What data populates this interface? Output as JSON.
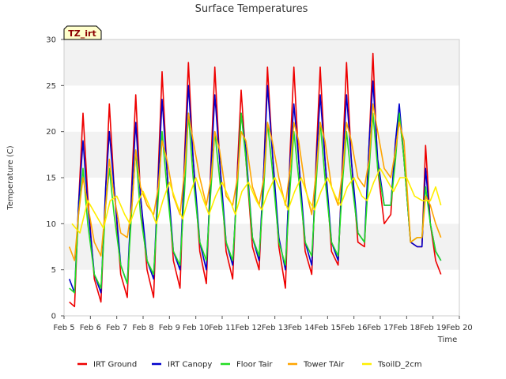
{
  "chart_data": {
    "type": "line",
    "title": "Surface Temperatures",
    "xlabel": "Time",
    "ylabel": "Temperature (C)",
    "badge": "TZ_irt",
    "xlim": [
      5,
      20
    ],
    "ylim": [
      0,
      30
    ],
    "x_ticks": [
      5,
      6,
      7,
      8,
      9,
      10,
      11,
      12,
      13,
      14,
      15,
      16,
      17,
      18,
      19,
      20
    ],
    "x_tick_labels": [
      "Feb 5",
      "Feb 6",
      "Feb 7",
      "Feb 8",
      "Feb 9",
      "Feb 10",
      "Feb 11",
      "Feb 12",
      "Feb 13",
      "Feb 14",
      "Feb 15",
      "Feb 16",
      "Feb 17",
      "Feb 18",
      "Feb 19",
      "Feb 20"
    ],
    "y_ticks": [
      0,
      5,
      10,
      15,
      20,
      25,
      30
    ],
    "y_tick_labels": [
      "0",
      "5",
      "10",
      "15",
      "20",
      "25",
      "30"
    ],
    "grid": "horizontal bands",
    "legend_position": "bottom",
    "series": [
      {
        "name": "IRT Ground",
        "color": "#ee0000",
        "x": [
          5.2,
          5.4,
          5.55,
          5.72,
          5.9,
          6.15,
          6.4,
          6.58,
          6.72,
          6.9,
          7.15,
          7.4,
          7.58,
          7.72,
          7.9,
          8.15,
          8.4,
          8.58,
          8.72,
          8.9,
          9.15,
          9.4,
          9.58,
          9.72,
          9.9,
          10.15,
          10.4,
          10.58,
          10.72,
          10.9,
          11.15,
          11.4,
          11.58,
          11.72,
          11.9,
          12.15,
          12.4,
          12.58,
          12.72,
          12.9,
          13.15,
          13.4,
          13.58,
          13.72,
          13.9,
          14.15,
          14.4,
          14.58,
          14.72,
          14.9,
          15.15,
          15.4,
          15.58,
          15.72,
          15.9,
          16.15,
          16.4,
          16.58,
          16.72,
          16.9,
          17.15,
          17.4,
          17.58,
          17.72,
          17.9,
          18.15,
          18.4,
          18.58,
          18.72,
          18.9,
          19.1,
          19.3
        ],
        "y": [
          1.5,
          1.0,
          12.0,
          22.0,
          13.0,
          4.0,
          1.5,
          14.0,
          23.0,
          14.0,
          4.5,
          2.0,
          15.0,
          24.0,
          13.0,
          5.0,
          2.0,
          16.0,
          26.5,
          16.0,
          6.0,
          3.0,
          18.0,
          27.5,
          17.0,
          7.0,
          3.5,
          17.0,
          27.0,
          17.0,
          7.0,
          4.0,
          16.0,
          24.5,
          17.0,
          7.5,
          5.0,
          16.0,
          27.0,
          18.0,
          7.5,
          3.0,
          18.0,
          27.0,
          17.0,
          7.0,
          4.5,
          18.0,
          27.0,
          17.0,
          7.0,
          5.5,
          18.0,
          27.5,
          17.0,
          8.0,
          7.5,
          19.0,
          28.5,
          16.0,
          10.0,
          11.0,
          19.0,
          22.0,
          17.0,
          8.0,
          7.5,
          7.5,
          18.5,
          10.0,
          6.0,
          4.5
        ]
      },
      {
        "name": "IRT Canopy",
        "color": "#0000cc",
        "x": [
          5.2,
          5.4,
          5.55,
          5.72,
          5.9,
          6.15,
          6.4,
          6.58,
          6.72,
          6.9,
          7.15,
          7.4,
          7.58,
          7.72,
          7.9,
          8.15,
          8.4,
          8.58,
          8.72,
          8.9,
          9.15,
          9.4,
          9.58,
          9.72,
          9.9,
          10.15,
          10.4,
          10.58,
          10.72,
          10.9,
          11.15,
          11.4,
          11.58,
          11.72,
          11.9,
          12.15,
          12.4,
          12.58,
          12.72,
          12.9,
          13.15,
          13.4,
          13.58,
          13.72,
          13.9,
          14.15,
          14.4,
          14.58,
          14.72,
          14.9,
          15.15,
          15.4,
          15.58,
          15.72,
          15.9,
          16.15,
          16.4,
          16.58,
          16.72,
          16.9,
          17.15,
          17.4,
          17.58,
          17.72,
          17.9,
          18.15,
          18.4,
          18.58,
          18.72,
          18.9,
          19.1,
          19.3
        ],
        "y": [
          4.0,
          2.5,
          12.0,
          19.0,
          12.0,
          4.5,
          2.5,
          14.0,
          20.0,
          14.0,
          5.5,
          3.5,
          14.0,
          21.0,
          13.0,
          6.0,
          4.0,
          15.0,
          23.5,
          16.0,
          7.0,
          5.0,
          17.0,
          25.0,
          17.0,
          8.0,
          5.0,
          16.0,
          24.0,
          17.0,
          8.0,
          5.5,
          15.0,
          22.0,
          18.0,
          8.5,
          6.0,
          16.0,
          25.0,
          18.0,
          8.5,
          5.0,
          17.0,
          23.0,
          17.0,
          8.0,
          5.5,
          17.0,
          24.0,
          17.0,
          8.0,
          6.0,
          17.0,
          24.0,
          17.0,
          9.0,
          8.0,
          19.0,
          25.5,
          17.0,
          12.0,
          12.0,
          19.0,
          23.0,
          17.0,
          8.0,
          7.5,
          7.5,
          16.0,
          10.0,
          7.0,
          6.0
        ]
      },
      {
        "name": "Floor Tair",
        "color": "#22dd22",
        "x": [
          5.2,
          5.4,
          5.55,
          5.72,
          5.9,
          6.15,
          6.4,
          6.58,
          6.72,
          6.9,
          7.15,
          7.4,
          7.58,
          7.72,
          7.9,
          8.15,
          8.4,
          8.58,
          8.72,
          8.9,
          9.15,
          9.4,
          9.58,
          9.72,
          9.9,
          10.15,
          10.4,
          10.58,
          10.72,
          10.9,
          11.15,
          11.4,
          11.58,
          11.72,
          11.9,
          12.15,
          12.4,
          12.58,
          12.72,
          12.9,
          13.15,
          13.4,
          13.58,
          13.72,
          13.9,
          14.15,
          14.4,
          14.58,
          14.72,
          14.9,
          15.15,
          15.4,
          15.58,
          15.72,
          15.9,
          16.15,
          16.4,
          16.58,
          16.72,
          16.9,
          17.15,
          17.4,
          17.58,
          17.72,
          17.9,
          18.15,
          18.4,
          18.58,
          18.72,
          18.9,
          19.1,
          19.3
        ],
        "y": [
          3.0,
          2.5,
          11.0,
          16.0,
          10.0,
          4.5,
          3.0,
          12.0,
          16.0,
          11.0,
          5.5,
          3.5,
          12.0,
          18.0,
          11.0,
          6.0,
          4.5,
          13.0,
          20.0,
          14.0,
          7.0,
          5.5,
          14.0,
          22.0,
          15.0,
          8.0,
          6.0,
          14.0,
          20.0,
          15.0,
          8.0,
          6.0,
          14.0,
          22.0,
          17.0,
          8.5,
          6.5,
          14.0,
          21.0,
          16.0,
          8.0,
          5.5,
          14.0,
          20.0,
          15.0,
          8.0,
          6.5,
          15.0,
          21.0,
          15.0,
          8.0,
          6.5,
          15.0,
          20.0,
          15.0,
          9.0,
          8.0,
          16.0,
          22.0,
          16.0,
          12.0,
          12.0,
          17.0,
          22.0,
          17.0,
          8.0,
          8.5,
          8.5,
          14.0,
          10.0,
          7.0,
          6.0
        ]
      },
      {
        "name": "Tower TAir",
        "color": "#ffa500",
        "x": [
          5.2,
          5.4,
          5.55,
          5.72,
          5.9,
          6.15,
          6.4,
          6.58,
          6.72,
          6.9,
          7.15,
          7.4,
          7.58,
          7.72,
          7.9,
          8.15,
          8.4,
          8.58,
          8.72,
          8.9,
          9.15,
          9.4,
          9.58,
          9.72,
          9.9,
          10.15,
          10.4,
          10.58,
          10.72,
          10.9,
          11.15,
          11.4,
          11.58,
          11.72,
          11.9,
          12.15,
          12.4,
          12.58,
          12.72,
          12.9,
          13.15,
          13.4,
          13.58,
          13.72,
          13.9,
          14.15,
          14.4,
          14.58,
          14.72,
          14.9,
          15.15,
          15.4,
          15.58,
          15.72,
          15.9,
          16.15,
          16.4,
          16.58,
          16.72,
          16.9,
          17.15,
          17.4,
          17.58,
          17.72,
          17.9,
          18.15,
          18.4,
          18.58,
          18.72,
          18.9,
          19.1,
          19.3
        ],
        "y": [
          7.5,
          6.0,
          11.0,
          15.0,
          12.0,
          8.0,
          6.5,
          12.0,
          17.0,
          13.0,
          9.0,
          8.5,
          12.0,
          18.0,
          14.0,
          12.0,
          11.0,
          14.0,
          19.0,
          17.0,
          13.0,
          11.0,
          16.0,
          22.0,
          19.0,
          15.0,
          12.0,
          15.0,
          20.0,
          18.0,
          13.0,
          12.0,
          15.0,
          20.0,
          19.0,
          14.0,
          12.0,
          15.0,
          21.0,
          19.0,
          15.0,
          12.0,
          16.0,
          21.0,
          19.0,
          14.0,
          11.0,
          16.0,
          21.0,
          19.0,
          14.0,
          12.0,
          16.0,
          21.0,
          19.0,
          15.0,
          14.0,
          17.0,
          23.0,
          20.0,
          16.0,
          15.0,
          18.0,
          21.0,
          19.0,
          8.0,
          8.5,
          8.5,
          13.0,
          12.0,
          10.0,
          8.5
        ]
      },
      {
        "name": "TsoilD_2cm",
        "color": "#ffee00",
        "x": [
          5.3,
          5.6,
          5.9,
          6.2,
          6.5,
          6.75,
          7.0,
          7.3,
          7.5,
          7.75,
          8.0,
          8.3,
          8.5,
          8.75,
          9.0,
          9.3,
          9.5,
          9.75,
          10.0,
          10.3,
          10.5,
          10.75,
          11.0,
          11.3,
          11.5,
          11.75,
          12.0,
          12.3,
          12.5,
          12.75,
          13.0,
          13.3,
          13.5,
          13.75,
          14.0,
          14.3,
          14.5,
          14.75,
          15.0,
          15.3,
          15.5,
          15.75,
          16.0,
          16.3,
          16.5,
          16.75,
          17.0,
          17.3,
          17.5,
          17.75,
          18.0,
          18.3,
          18.6,
          18.9,
          19.1,
          19.3
        ],
        "y": [
          10.0,
          9.0,
          12.5,
          11.0,
          9.5,
          12.5,
          13.0,
          11.0,
          10.0,
          12.0,
          13.5,
          11.5,
          10.0,
          12.5,
          14.5,
          12.0,
          10.5,
          13.0,
          15.0,
          12.5,
          11.0,
          13.0,
          14.5,
          12.5,
          11.0,
          13.5,
          14.5,
          12.5,
          11.5,
          13.5,
          15.0,
          13.0,
          11.5,
          13.5,
          15.0,
          12.5,
          11.5,
          13.5,
          15.0,
          13.0,
          12.0,
          14.0,
          15.0,
          13.0,
          12.5,
          14.5,
          16.0,
          14.5,
          13.5,
          15.0,
          15.0,
          13.0,
          12.5,
          12.5,
          14.0,
          12.0
        ]
      }
    ]
  }
}
